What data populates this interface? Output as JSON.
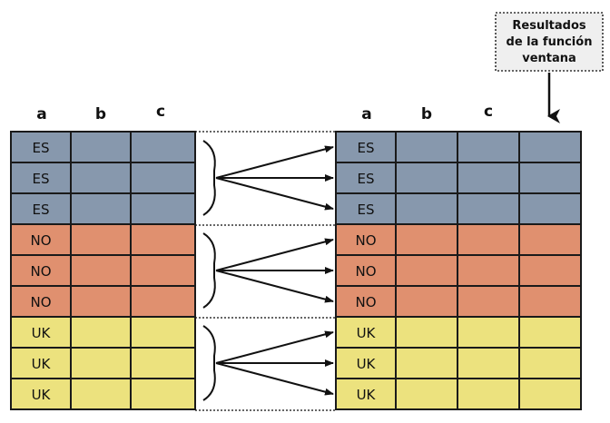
{
  "left_table": {
    "headers": [
      "a",
      "b",
      "c"
    ],
    "groups": [
      {
        "label": "ES",
        "rows": 3,
        "color": "#8798ad"
      },
      {
        "label": "NO",
        "rows": 3,
        "color": "#e0906f"
      },
      {
        "label": "UK",
        "rows": 3,
        "color": "#ece27e"
      }
    ]
  },
  "right_table": {
    "headers": [
      "a",
      "b",
      "c"
    ],
    "extra_column_header": ""
  },
  "callout": {
    "lines": [
      "Resultados",
      "de la función",
      "ventana"
    ]
  },
  "colors": {
    "grid_line": "#1a1a1a",
    "dotted_border": "#333333"
  }
}
